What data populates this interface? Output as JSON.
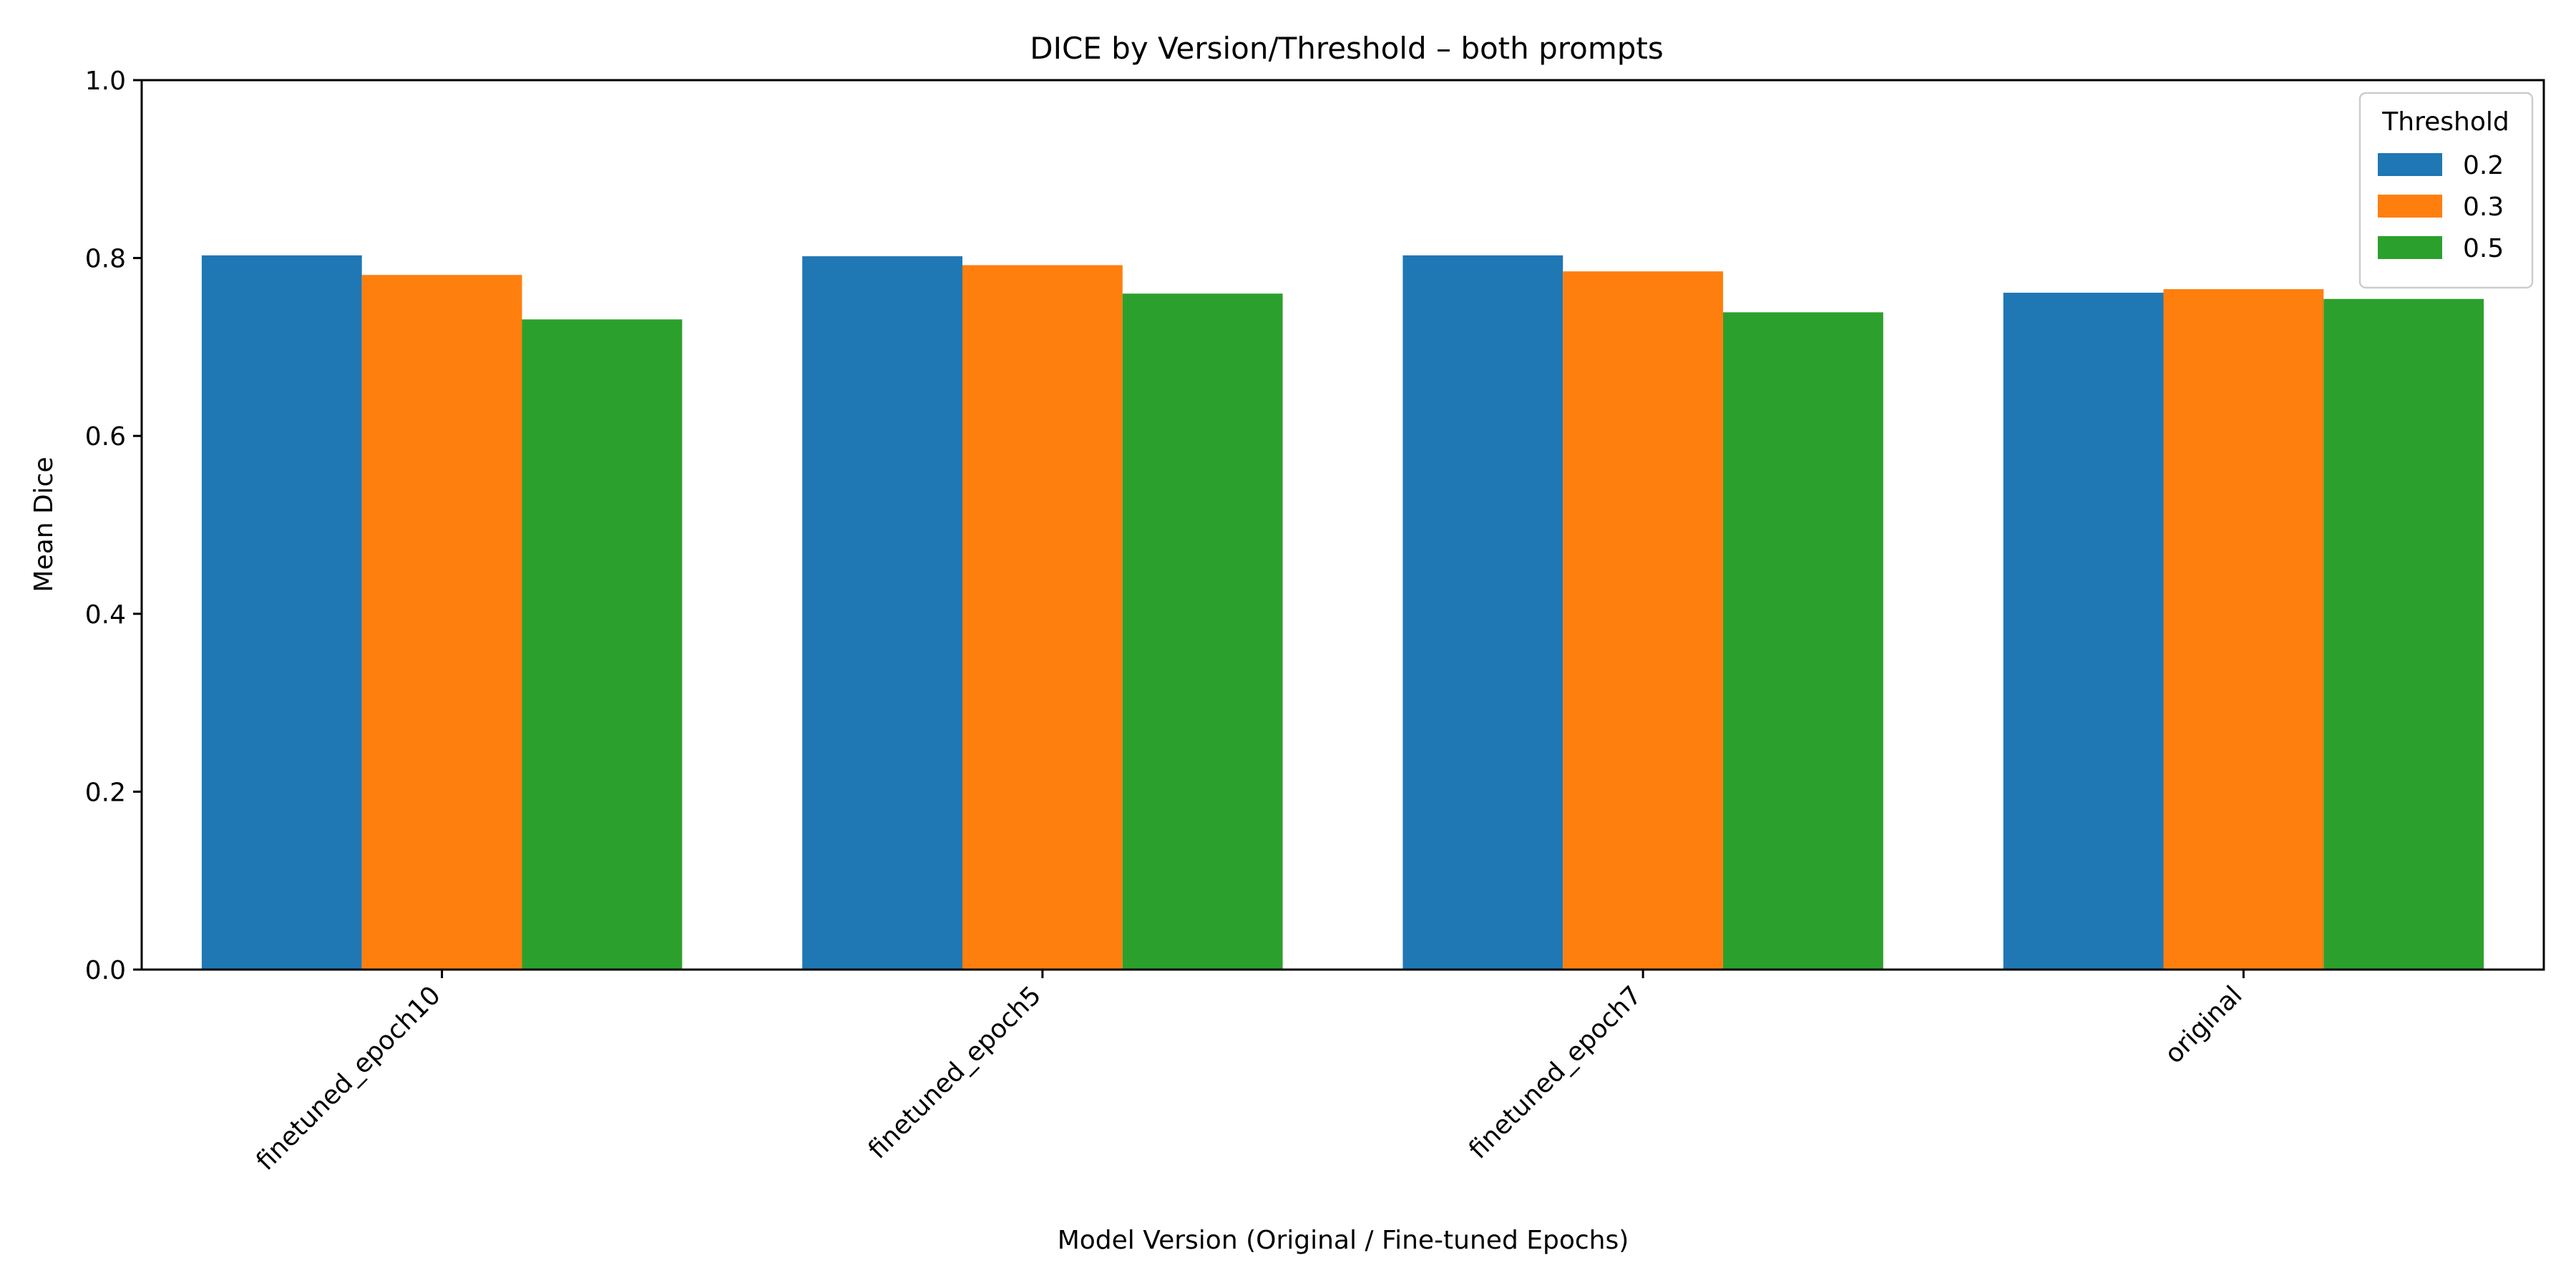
{
  "chart_data": {
    "type": "bar",
    "title": "DICE by Version/Threshold – both prompts",
    "xlabel": "Model Version (Original / Fine-tuned Epochs)",
    "ylabel": "Mean Dice",
    "ylim": [
      0,
      1.0
    ],
    "yticks": [
      "0.0",
      "0.2",
      "0.4",
      "0.6",
      "0.8",
      "1.0"
    ],
    "categories": [
      "finetuned_epoch10",
      "finetuned_epoch5",
      "finetuned_epoch7",
      "original"
    ],
    "legend": {
      "title": "Threshold",
      "placement": "top-right"
    },
    "series": [
      {
        "name": "0.2",
        "color": "#1f77b4",
        "values": [
          0.803,
          0.802,
          0.803,
          0.761
        ]
      },
      {
        "name": "0.3",
        "color": "#ff7f0e",
        "values": [
          0.781,
          0.792,
          0.785,
          0.765
        ]
      },
      {
        "name": "0.5",
        "color": "#2ca02c",
        "values": [
          0.731,
          0.76,
          0.739,
          0.754
        ]
      }
    ],
    "grid": false
  }
}
